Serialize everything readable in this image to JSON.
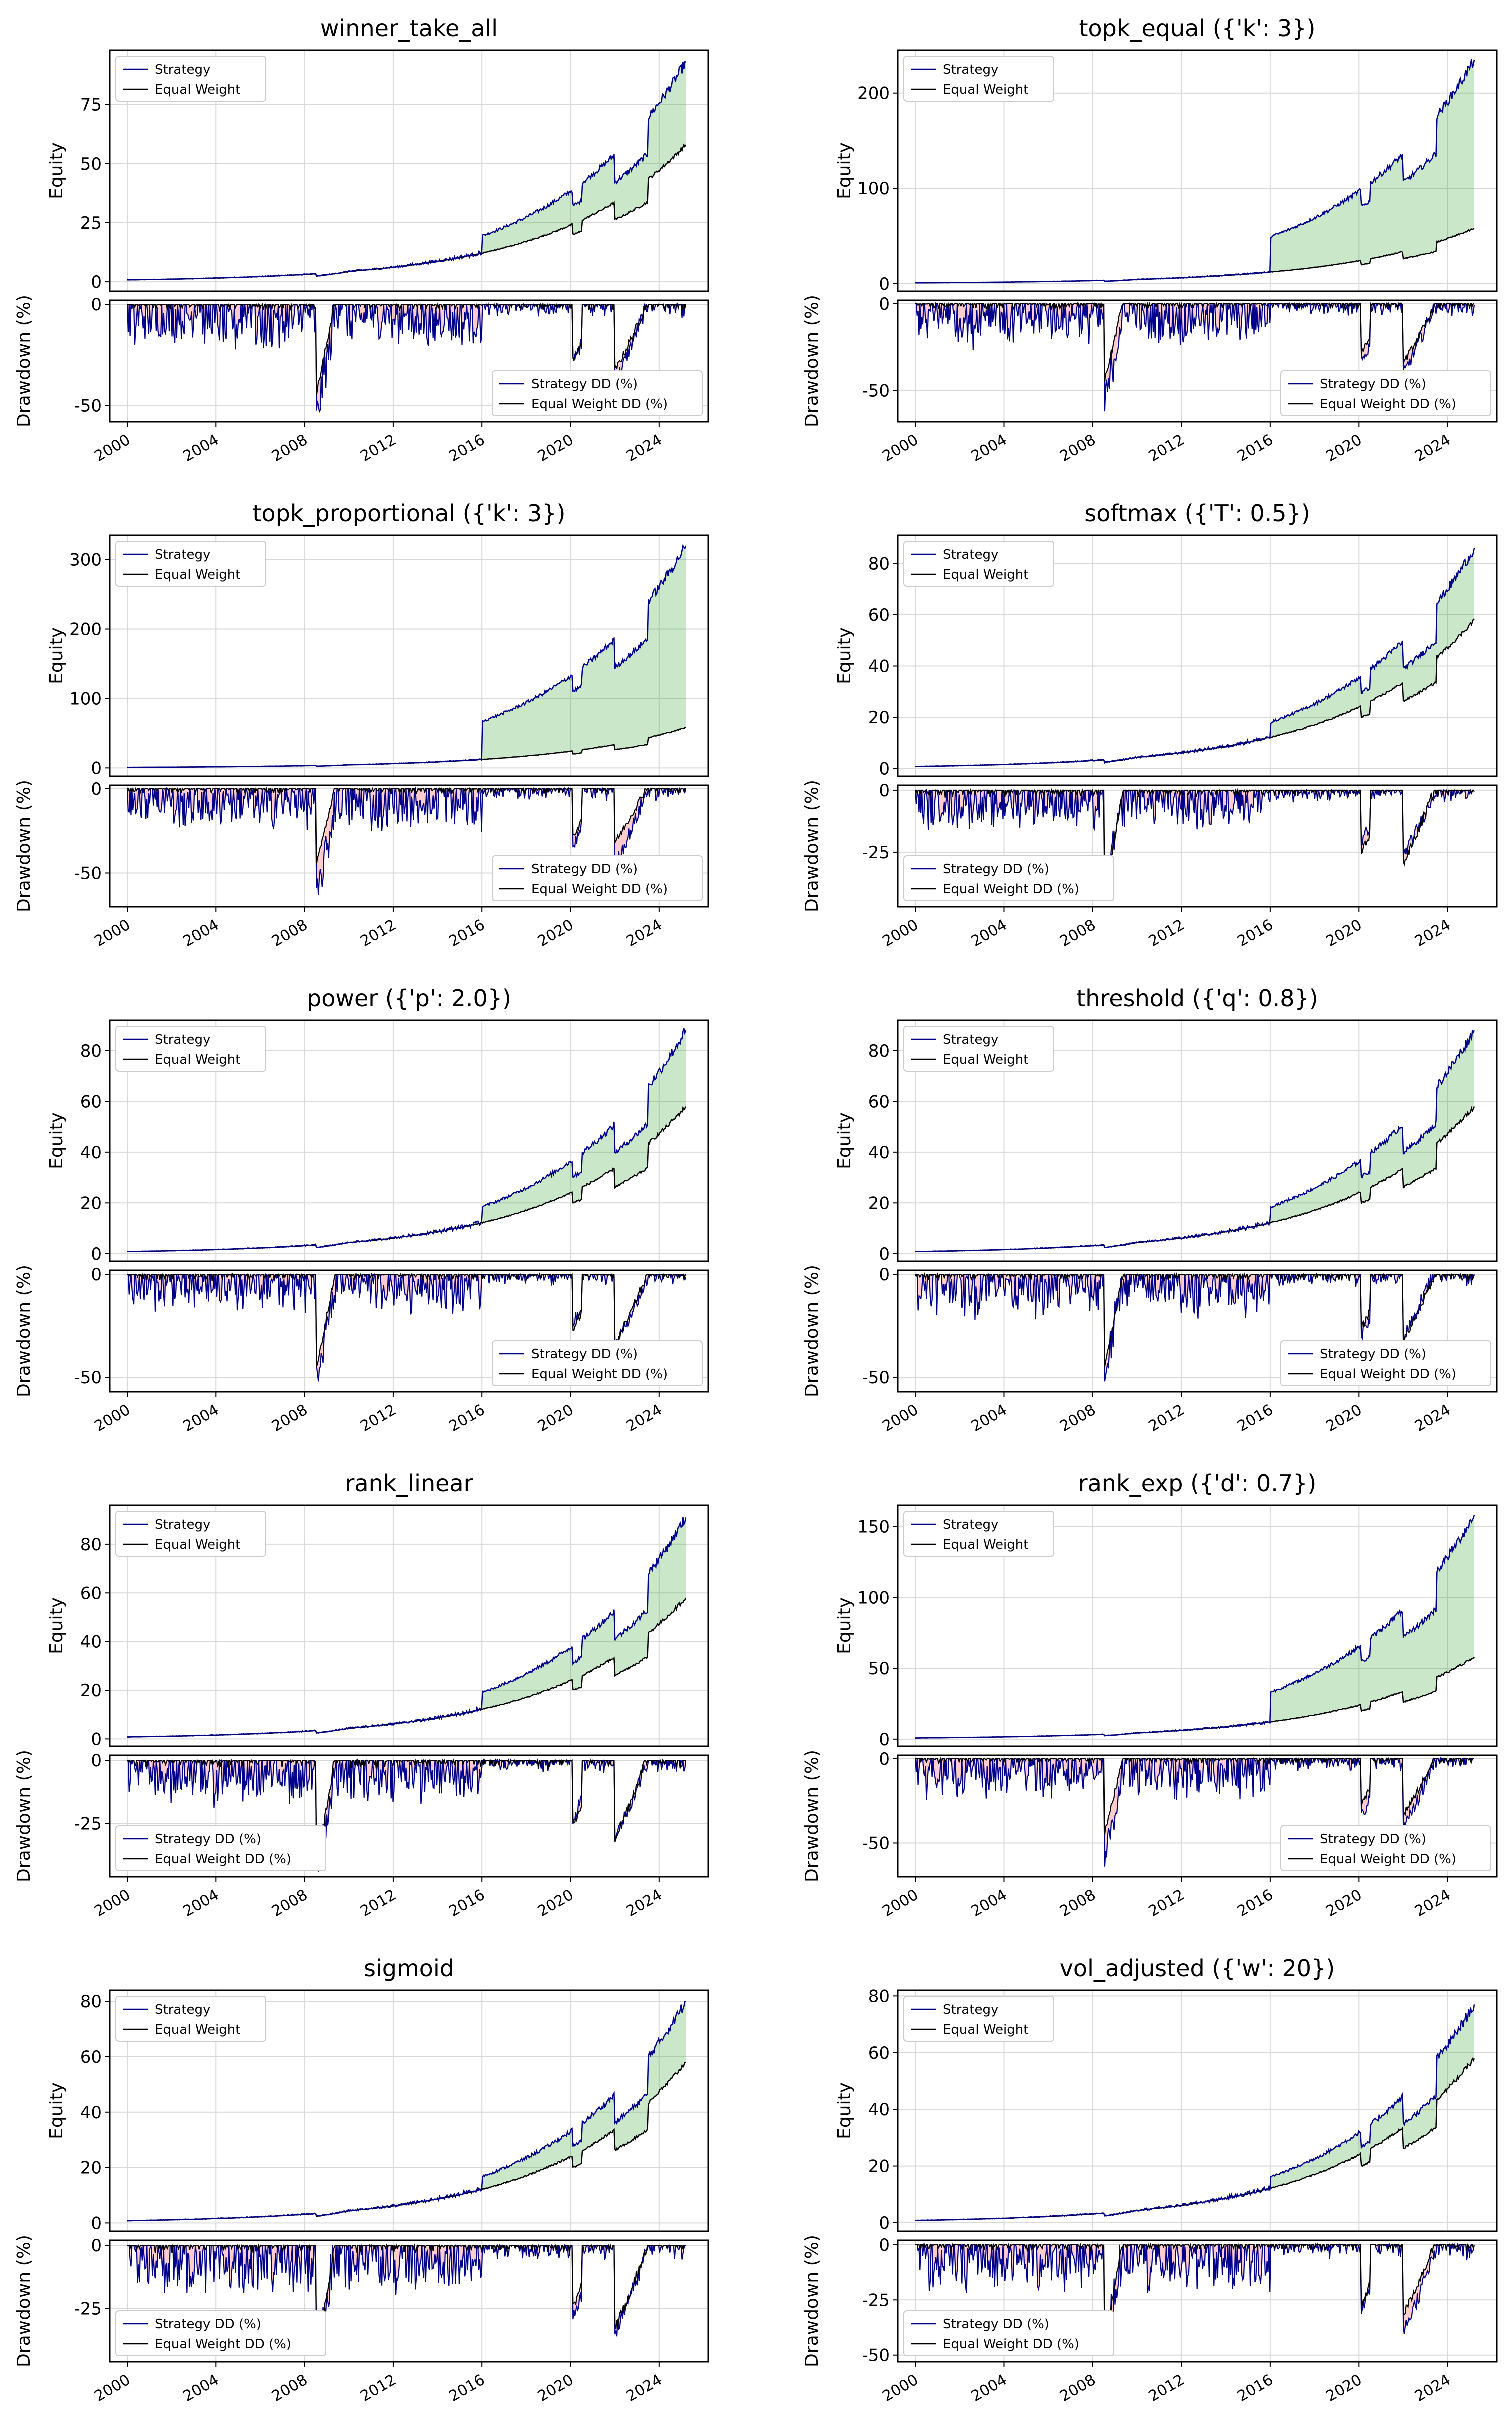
{
  "figure": {
    "colors": {
      "strategy": "#00008b",
      "equal_weight": "#000000",
      "fill_outperform": "#2ca02c",
      "fill_underperform": "#ff6f6f",
      "grid": "#d9d9d9",
      "axis": "#000000"
    },
    "legend_equity": [
      "Strategy",
      "Equal Weight"
    ],
    "legend_dd": [
      "Strategy DD (%)",
      "Equal Weight DD (%)"
    ],
    "ylabel_equity": "Equity",
    "ylabel_dd": "Drawdown (%)",
    "x_ticks": [
      "2000",
      "2004",
      "2008",
      "2012",
      "2016",
      "2020",
      "2024"
    ]
  },
  "chart_data": [
    {
      "type": "line",
      "title": "winner_take_all",
      "equity": {
        "ylim": [
          -4,
          98
        ],
        "yticks": [
          0,
          25,
          50,
          75
        ],
        "strategy_final": 93,
        "equal_final": 58,
        "strategy_pre": 4
      },
      "drawdown": {
        "ylim": [
          -58,
          2
        ],
        "yticks": [
          0,
          -50
        ],
        "strategy_min": -53,
        "equal_min": -45,
        "legend": "lower right"
      },
      "series": [
        {
          "name": "Strategy",
          "values_final": 93
        },
        {
          "name": "Equal Weight",
          "values_final": 58
        }
      ]
    },
    {
      "type": "line",
      "title": "topk_equal ({'k': 3})",
      "equity": {
        "ylim": [
          -8,
          245
        ],
        "yticks": [
          0,
          100,
          200
        ],
        "strategy_final": 235,
        "equal_final": 58,
        "strategy_pre": 10
      },
      "drawdown": {
        "ylim": [
          -68,
          2
        ],
        "yticks": [
          0,
          -50
        ],
        "strategy_min": -62,
        "equal_min": -45,
        "legend": "lower right"
      },
      "series": [
        {
          "name": "Strategy",
          "values_final": 235
        },
        {
          "name": "Equal Weight",
          "values_final": 58
        }
      ]
    },
    {
      "type": "line",
      "title": "topk_proportional ({'k': 3})",
      "equity": {
        "ylim": [
          -12,
          335
        ],
        "yticks": [
          0,
          100,
          200,
          300
        ],
        "strategy_final": 320,
        "equal_final": 58,
        "strategy_pre": 12
      },
      "drawdown": {
        "ylim": [
          -70,
          2
        ],
        "yticks": [
          0,
          -50
        ],
        "strategy_min": -63,
        "equal_min": -45,
        "legend": "lower right"
      },
      "series": [
        {
          "name": "Strategy",
          "values_final": 320
        },
        {
          "name": "Equal Weight",
          "values_final": 58
        }
      ]
    },
    {
      "type": "line",
      "title": "softmax ({'T': 0.5})",
      "equity": {
        "ylim": [
          -3,
          91
        ],
        "yticks": [
          0,
          20,
          40,
          60,
          80
        ],
        "strategy_final": 86,
        "equal_final": 58,
        "strategy_pre": 4
      },
      "drawdown": {
        "ylim": [
          -47,
          2
        ],
        "yticks": [
          0,
          -25
        ],
        "strategy_min": -44,
        "equal_min": -42,
        "legend": "lower left"
      },
      "series": [
        {
          "name": "Strategy",
          "values_final": 86
        },
        {
          "name": "Equal Weight",
          "values_final": 58
        }
      ]
    },
    {
      "type": "line",
      "title": "power ({'p': 2.0})",
      "equity": {
        "ylim": [
          -3,
          92
        ],
        "yticks": [
          0,
          20,
          40,
          60,
          80
        ],
        "strategy_final": 88,
        "equal_final": 58,
        "strategy_pre": 4
      },
      "drawdown": {
        "ylim": [
          -57,
          2
        ],
        "yticks": [
          0,
          -50
        ],
        "strategy_min": -52,
        "equal_min": -45,
        "legend": "lower right"
      },
      "series": [
        {
          "name": "Strategy",
          "values_final": 88
        },
        {
          "name": "Equal Weight",
          "values_final": 58
        }
      ]
    },
    {
      "type": "line",
      "title": "threshold ({'q': 0.8})",
      "equity": {
        "ylim": [
          -3,
          92
        ],
        "yticks": [
          0,
          20,
          40,
          60,
          80
        ],
        "strategy_final": 88,
        "equal_final": 58,
        "strategy_pre": 4
      },
      "drawdown": {
        "ylim": [
          -57,
          2
        ],
        "yticks": [
          0,
          -50
        ],
        "strategy_min": -52,
        "equal_min": -45,
        "legend": "lower right"
      },
      "series": [
        {
          "name": "Strategy",
          "values_final": 88
        },
        {
          "name": "Equal Weight",
          "values_final": 58
        }
      ]
    },
    {
      "type": "line",
      "title": "rank_linear",
      "equity": {
        "ylim": [
          -3,
          96
        ],
        "yticks": [
          0,
          20,
          40,
          60,
          80
        ],
        "strategy_final": 91,
        "equal_final": 58,
        "strategy_pre": 4
      },
      "drawdown": {
        "ylim": [
          -46,
          2
        ],
        "yticks": [
          0,
          -25
        ],
        "strategy_min": -44,
        "equal_min": -42,
        "legend": "lower left"
      },
      "series": [
        {
          "name": "Strategy",
          "values_final": 91
        },
        {
          "name": "Equal Weight",
          "values_final": 58
        }
      ]
    },
    {
      "type": "line",
      "title": "rank_exp ({'d': 0.7})",
      "equity": {
        "ylim": [
          -5,
          165
        ],
        "yticks": [
          0,
          50,
          100,
          150
        ],
        "strategy_final": 158,
        "equal_final": 58,
        "strategy_pre": 8
      },
      "drawdown": {
        "ylim": [
          -70,
          2
        ],
        "yticks": [
          0,
          -50
        ],
        "strategy_min": -64,
        "equal_min": -45,
        "legend": "lower right"
      },
      "series": [
        {
          "name": "Strategy",
          "values_final": 158
        },
        {
          "name": "Equal Weight",
          "values_final": 58
        }
      ]
    },
    {
      "type": "line",
      "title": "sigmoid",
      "equity": {
        "ylim": [
          -3,
          84
        ],
        "yticks": [
          0,
          20,
          40,
          60,
          80
        ],
        "strategy_final": 80,
        "equal_final": 58,
        "strategy_pre": 4
      },
      "drawdown": {
        "ylim": [
          -46,
          2
        ],
        "yticks": [
          0,
          -25
        ],
        "strategy_min": -43,
        "equal_min": -42,
        "legend": "lower left"
      },
      "series": [
        {
          "name": "Strategy",
          "values_final": 80
        },
        {
          "name": "Equal Weight",
          "values_final": 58
        }
      ]
    },
    {
      "type": "line",
      "title": "vol_adjusted ({'w': 20})",
      "equity": {
        "ylim": [
          -3,
          82
        ],
        "yticks": [
          0,
          20,
          40,
          60,
          80
        ],
        "strategy_final": 77,
        "equal_final": 58,
        "strategy_pre": 4
      },
      "drawdown": {
        "ylim": [
          -53,
          2
        ],
        "yticks": [
          0,
          -25,
          -50
        ],
        "strategy_min": -50,
        "equal_min": -42,
        "legend": "lower left"
      },
      "series": [
        {
          "name": "Strategy",
          "values_final": 77
        },
        {
          "name": "Equal Weight",
          "values_final": 58
        }
      ]
    }
  ]
}
